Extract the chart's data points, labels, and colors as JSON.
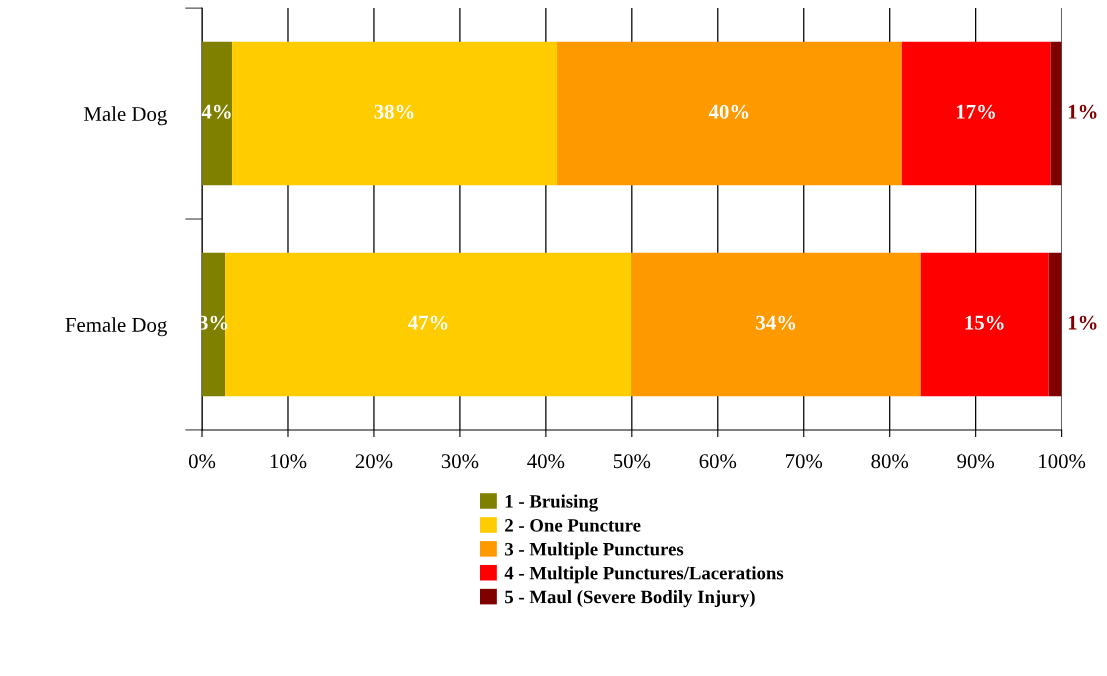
{
  "chart_data": {
    "type": "bar",
    "orientation": "horizontal",
    "stacked": true,
    "categories": [
      "Male Dog",
      "Female Dog"
    ],
    "series": [
      {
        "name": "1 - Bruising",
        "color": "#808000",
        "values": [
          3.5,
          2.7
        ],
        "value_labels": [
          "4%",
          "3%"
        ]
      },
      {
        "name": "2 - One Puncture",
        "color": "#ffcc00",
        "values": [
          37.8,
          47.3
        ],
        "value_labels": [
          "38%",
          "47%"
        ]
      },
      {
        "name": "3 - Multiple Punctures",
        "color": "#ff9900",
        "values": [
          40.1,
          33.6
        ],
        "value_labels": [
          "40%",
          "34%"
        ]
      },
      {
        "name": "4 - Multiple Punctures/Lacerations",
        "color": "#ff0000",
        "values": [
          17.3,
          14.9
        ],
        "value_labels": [
          "17%",
          "15%"
        ]
      },
      {
        "name": "5 - Maul (Severe Bodily Injury)",
        "color": "#800000",
        "values": [
          1.3,
          1.5
        ],
        "value_labels": [
          "1%",
          "1%"
        ]
      }
    ],
    "xlim": [
      0,
      100
    ],
    "xticks": [
      {
        "value": 0,
        "label": "0%"
      },
      {
        "value": 10,
        "label": "10%"
      },
      {
        "value": 20,
        "label": "20%"
      },
      {
        "value": 30,
        "label": "30%"
      },
      {
        "value": 40,
        "label": "40%"
      },
      {
        "value": 50,
        "label": "50%"
      },
      {
        "value": 60,
        "label": "60%"
      },
      {
        "value": 70,
        "label": "70%"
      },
      {
        "value": 80,
        "label": "80%"
      },
      {
        "value": 90,
        "label": "90%"
      },
      {
        "value": 100,
        "label": "100%"
      }
    ],
    "grid": "x",
    "legend": "bottom"
  }
}
